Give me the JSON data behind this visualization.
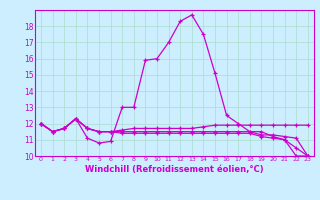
{
  "xlabel": "Windchill (Refroidissement éolien,°C)",
  "background_color": "#cceeff",
  "line_color": "#cc00cc",
  "grid_color": "#aaddcc",
  "x_values": [
    0,
    1,
    2,
    3,
    4,
    5,
    6,
    7,
    8,
    9,
    10,
    11,
    12,
    13,
    14,
    15,
    16,
    17,
    18,
    19,
    20,
    21,
    22,
    23
  ],
  "series": [
    [
      12.0,
      11.5,
      11.7,
      12.3,
      11.1,
      10.8,
      10.9,
      13.0,
      13.0,
      15.9,
      16.0,
      17.0,
      18.3,
      18.7,
      17.5,
      15.1,
      12.5,
      12.0,
      11.5,
      11.5,
      11.2,
      11.0,
      10.0,
      10.0
    ],
    [
      12.0,
      11.5,
      11.7,
      12.3,
      11.7,
      11.5,
      11.5,
      11.6,
      11.7,
      11.7,
      11.7,
      11.7,
      11.7,
      11.7,
      11.8,
      11.9,
      11.9,
      11.9,
      11.9,
      11.9,
      11.9,
      11.9,
      11.9,
      11.9
    ],
    [
      12.0,
      11.5,
      11.7,
      12.3,
      11.7,
      11.5,
      11.5,
      11.5,
      11.5,
      11.5,
      11.5,
      11.5,
      11.5,
      11.5,
      11.5,
      11.5,
      11.5,
      11.5,
      11.5,
      11.3,
      11.3,
      11.2,
      11.1,
      10.0
    ],
    [
      12.0,
      11.5,
      11.7,
      12.3,
      11.7,
      11.5,
      11.5,
      11.4,
      11.4,
      11.4,
      11.4,
      11.4,
      11.4,
      11.4,
      11.4,
      11.4,
      11.4,
      11.4,
      11.4,
      11.2,
      11.1,
      11.0,
      10.5,
      10.0
    ]
  ],
  "xlim": [
    -0.5,
    23.5
  ],
  "ylim": [
    10,
    19
  ],
  "yticks": [
    10,
    11,
    12,
    13,
    14,
    15,
    16,
    17,
    18
  ],
  "xticks": [
    0,
    1,
    2,
    3,
    4,
    5,
    6,
    7,
    8,
    9,
    10,
    11,
    12,
    13,
    14,
    15,
    16,
    17,
    18,
    19,
    20,
    21,
    22,
    23
  ],
  "marker": "+",
  "tick_fontsize": 5.5,
  "xlabel_fontsize": 6.0,
  "marker_size": 3.0,
  "linewidth": 0.9
}
